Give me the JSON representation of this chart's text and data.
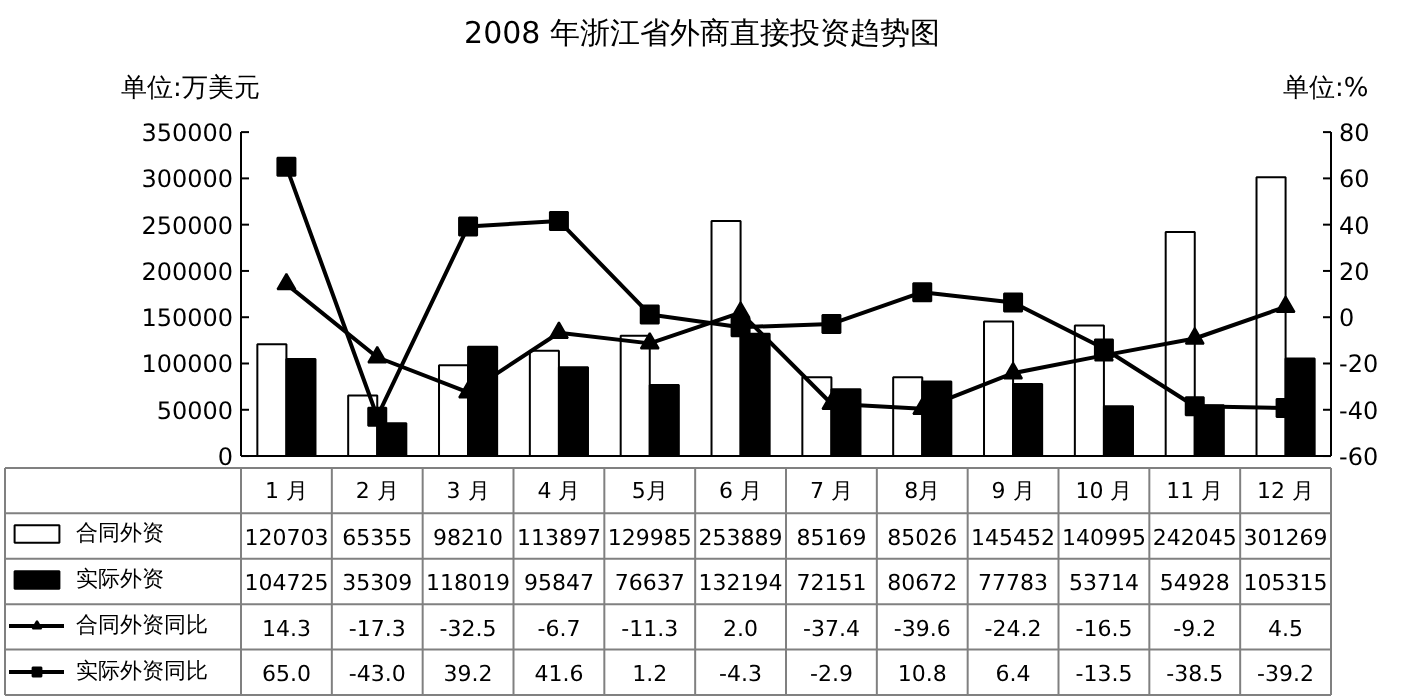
{
  "chart_data": {
    "type": "bar",
    "title": "2008 年浙江省外商直接投资趋势图",
    "ylabel": "单位:万美元",
    "y2label": "单位:%",
    "categories": [
      "1 月",
      "2 月",
      "3 月",
      "4 月",
      "5月",
      "6 月",
      "7 月",
      "8月",
      "9 月",
      "10 月",
      "11 月",
      "12 月"
    ],
    "series": [
      {
        "name": "合同外资",
        "color": "#ffffff",
        "values": [
          120703,
          65355,
          98210,
          113897,
          129985,
          253889,
          85169,
          85026,
          145452,
          140995,
          242045,
          301269
        ]
      },
      {
        "name": "实际外资",
        "color": "#000000",
        "values": [
          104725,
          35309,
          118019,
          95847,
          76637,
          132194,
          72151,
          80672,
          77783,
          53714,
          54928,
          105315
        ]
      },
      {
        "name": "合同外资同比",
        "type": "line",
        "axis": "y2",
        "marker": "triangle",
        "color": "#000000",
        "values": [
          14.3,
          -17.3,
          -32.5,
          -6.7,
          -11.3,
          2.0,
          -37.4,
          -39.6,
          -24.2,
          -16.5,
          -9.2,
          4.5
        ],
        "value_labels": [
          "14.3",
          "-17.3",
          "-32.5",
          "-6.7",
          "-11.3",
          "2.0",
          "-37.4",
          "-39.6",
          "-24.2",
          "-16.5",
          "-9.2",
          "4.5"
        ]
      },
      {
        "name": "实际外资同比",
        "type": "line",
        "axis": "y2",
        "marker": "square",
        "color": "#000000",
        "values": [
          65.0,
          -43.0,
          39.2,
          41.6,
          1.2,
          -4.3,
          -2.9,
          10.8,
          6.4,
          -13.5,
          -38.5,
          -39.2
        ],
        "value_labels": [
          "65.0",
          "-43.0",
          "39.2",
          "41.6",
          "1.2",
          "-4.3",
          "-2.9",
          "10.8",
          "6.4",
          "-13.5",
          "-38.5",
          "-39.2"
        ]
      }
    ],
    "ylim": [
      0,
      350000
    ],
    "yticks": [
      0,
      50000,
      100000,
      150000,
      200000,
      250000,
      300000,
      350000
    ],
    "y2lim": [
      -60,
      80
    ],
    "y2ticks": [
      -60,
      -40,
      -20,
      0,
      20,
      40,
      60,
      80
    ],
    "grid": false,
    "legend": "bottom",
    "data_labels": true
  }
}
